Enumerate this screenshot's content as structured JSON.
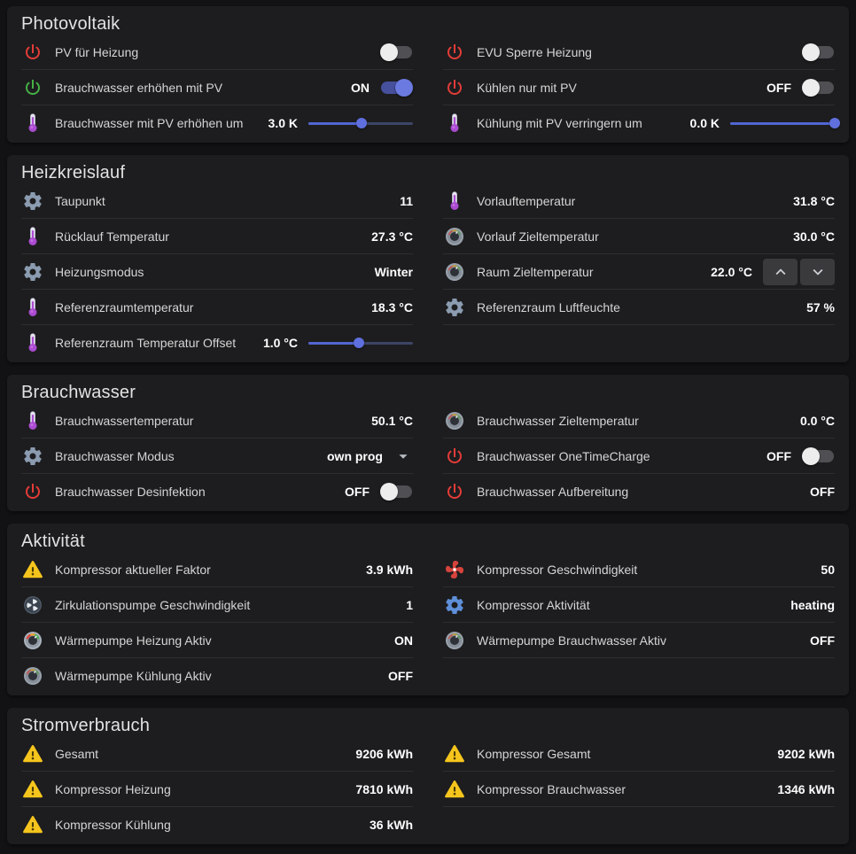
{
  "colors": {
    "background": "#121214",
    "card": "#1d1d1f",
    "accent_blue": "#5f6fdd",
    "power_red": "#e33c38",
    "power_green": "#45b045",
    "warning_yellow": "#f6c51d"
  },
  "sections": [
    {
      "title": "Photovoltaik",
      "columns": [
        [
          {
            "icon": "power-red",
            "label": "PV für Heizung",
            "value": "",
            "control": {
              "type": "toggle",
              "state": "off"
            }
          },
          {
            "icon": "power-green",
            "label": "Brauchwasser erhöhen mit PV",
            "value": "ON",
            "control": {
              "type": "toggle",
              "state": "on"
            }
          },
          {
            "icon": "thermometer",
            "label": "Brauchwasser mit PV erhöhen um",
            "value": "3.0 K",
            "control": {
              "type": "slider",
              "percent": 51
            }
          }
        ],
        [
          {
            "icon": "power-red",
            "label": "EVU Sperre Heizung",
            "value": "",
            "control": {
              "type": "toggle",
              "state": "off"
            }
          },
          {
            "icon": "power-red",
            "label": "Kühlen nur mit PV",
            "value": "OFF",
            "control": {
              "type": "toggle",
              "state": "off"
            }
          },
          {
            "icon": "thermometer",
            "label": "Kühlung mit PV verringern um",
            "value": "0.0 K",
            "control": {
              "type": "slider",
              "percent": 100
            }
          }
        ]
      ]
    },
    {
      "title": "Heizkreislauf",
      "columns": [
        [
          {
            "icon": "gear",
            "label": "Taupunkt",
            "value": "11",
            "control": null
          },
          {
            "icon": "thermometer",
            "label": "Rücklauf Temperatur",
            "value": "27.3 °C",
            "control": null
          },
          {
            "icon": "gear",
            "label": "Heizungsmodus",
            "value": "Winter",
            "control": null
          },
          {
            "icon": "thermometer",
            "label": "Referenzraumtemperatur",
            "value": "18.3 °C",
            "control": null
          },
          {
            "icon": "thermometer",
            "label": "Referenzraum Temperatur Offset",
            "value": "1.0 °C",
            "control": {
              "type": "slider",
              "percent": 48
            }
          }
        ],
        [
          {
            "icon": "thermometer",
            "label": "Vorlauftemperatur",
            "value": "31.8 °C",
            "control": null
          },
          {
            "icon": "dial",
            "label": "Vorlauf Zieltemperatur",
            "value": "30.0 °C",
            "control": null
          },
          {
            "icon": "dial",
            "label": "Raum Zieltemperatur",
            "value": "22.0 °C",
            "control": {
              "type": "stepper"
            }
          },
          {
            "icon": "gear",
            "label": "Referenzraum Luftfeuchte",
            "value": "57 %",
            "control": null
          }
        ]
      ]
    },
    {
      "title": "Brauchwasser",
      "columns": [
        [
          {
            "icon": "thermometer",
            "label": "Brauchwassertemperatur",
            "value": "50.1 °C",
            "control": null
          },
          {
            "icon": "gear",
            "label": "Brauchwasser Modus",
            "value": "own prog",
            "control": {
              "type": "dropdown"
            }
          },
          {
            "icon": "power-red",
            "label": "Brauchwasser Desinfektion",
            "value": "OFF",
            "control": {
              "type": "toggle",
              "state": "off"
            }
          }
        ],
        [
          {
            "icon": "dial",
            "label": "Brauchwasser Zieltemperatur",
            "value": "0.0 °C",
            "control": null
          },
          {
            "icon": "power-red",
            "label": "Brauchwasser OneTimeCharge",
            "value": "OFF",
            "control": {
              "type": "toggle",
              "state": "off"
            }
          },
          {
            "icon": "power-red",
            "label": "Brauchwasser Aufbereitung",
            "value": "OFF",
            "control": null
          }
        ]
      ]
    },
    {
      "title": "Aktivität",
      "columns": [
        [
          {
            "icon": "warning",
            "label": "Kompressor aktueller Faktor",
            "value": "3.9 kWh",
            "control": null
          },
          {
            "icon": "pump",
            "label": "Zirkulationspumpe Geschwindigkeit",
            "value": "1",
            "control": null
          },
          {
            "icon": "dial-color",
            "label": "Wärmepumpe Heizung Aktiv",
            "value": "ON",
            "control": null
          },
          {
            "icon": "dial",
            "label": "Wärmepumpe Kühlung Aktiv",
            "value": "OFF",
            "control": null
          }
        ],
        [
          {
            "icon": "fan-red",
            "label": "Kompressor Geschwindigkeit",
            "value": "50",
            "control": null
          },
          {
            "icon": "gear-blue",
            "label": "Kompressor Aktivität",
            "value": "heating",
            "control": null
          },
          {
            "icon": "dial",
            "label": "Wärmepumpe Brauchwasser Aktiv",
            "value": "OFF",
            "control": null
          }
        ]
      ]
    },
    {
      "title": "Stromverbrauch",
      "columns": [
        [
          {
            "icon": "warning",
            "label": "Gesamt",
            "value": "9206 kWh",
            "control": null
          },
          {
            "icon": "warning",
            "label": "Kompressor Heizung",
            "value": "7810 kWh",
            "control": null
          },
          {
            "icon": "warning",
            "label": "Kompressor Kühlung",
            "value": "36 kWh",
            "control": null
          }
        ],
        [
          {
            "icon": "warning",
            "label": "Kompressor Gesamt",
            "value": "9202 kWh",
            "control": null
          },
          {
            "icon": "warning",
            "label": "Kompressor Brauchwasser",
            "value": "1346 kWh",
            "control": null
          }
        ]
      ]
    }
  ]
}
